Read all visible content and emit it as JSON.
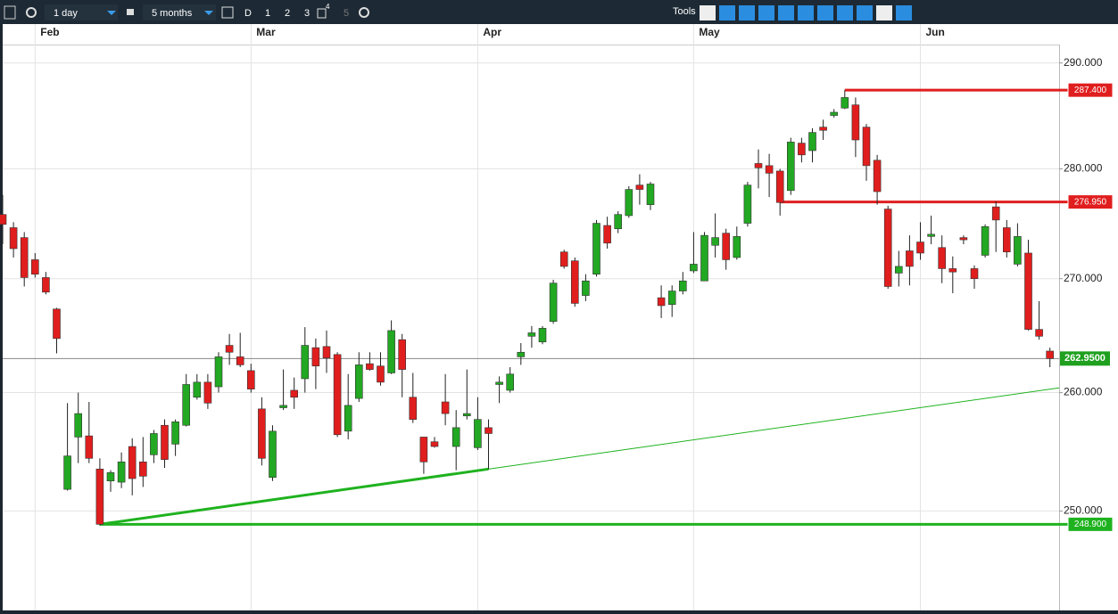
{
  "toolbar": {
    "interval": "1 day",
    "range": "5 months",
    "buttons": [
      "D",
      "1",
      "2",
      "3"
    ],
    "badge": "4",
    "disabled": "5",
    "tools": "Tools"
  },
  "chart_data": {
    "type": "candlestick",
    "log_scale": true,
    "grid": true,
    "up_color": "#22a822",
    "down_color": "#e01e1e",
    "categories": [
      null,
      null,
      null,
      "Feb",
      null,
      null,
      null,
      null,
      null,
      null,
      null,
      null,
      null,
      null,
      null,
      null,
      null,
      null,
      null,
      null,
      null,
      null,
      null,
      "Mar",
      null,
      null,
      null,
      null,
      null,
      null,
      null,
      null,
      null,
      null,
      null,
      null,
      null,
      null,
      null,
      null,
      null,
      null,
      null,
      null,
      "Apr",
      null,
      null,
      null,
      null,
      null,
      null,
      null,
      null,
      null,
      null,
      null,
      null,
      null,
      null,
      null,
      null,
      null,
      null,
      null,
      "May",
      null,
      null,
      null,
      null,
      null,
      null,
      null,
      null,
      null,
      null,
      null,
      null,
      null,
      null,
      null,
      null,
      null,
      null,
      null,
      null,
      "Jun",
      null,
      null,
      null,
      null,
      null,
      null,
      null,
      null,
      null,
      null,
      null,
      null
    ],
    "open": [
      275.8,
      274.6,
      273.7,
      271.7,
      270.1,
      267.3,
      251.8,
      256.2,
      256.3,
      253.5,
      252.5,
      252.4,
      255.4,
      254.1,
      254.7,
      257.2,
      255.6,
      257.2,
      259.6,
      260.9,
      260.5,
      264.1,
      263.1,
      261.9,
      258.6,
      252.8,
      258.7,
      260.2,
      261.2,
      263.9,
      264.0,
      263.3,
      256.7,
      259.5,
      262.5,
      262.3,
      261.7,
      264.6,
      259.6,
      256.2,
      255.8,
      259.2,
      255.4,
      258.0,
      255.3,
      257.0,
      260.7,
      260.2,
      263.1,
      264.9,
      264.4,
      266.2,
      272.4,
      271.6,
      268.5,
      270.4,
      274.8,
      274.5,
      275.7,
      278.5,
      276.7,
      268.3,
      267.7,
      268.9,
      270.7,
      269.8,
      273.0,
      274.1,
      271.9,
      275.0,
      280.5,
      280.3,
      279.8,
      278.0,
      282.4,
      281.7,
      283.9,
      285.0,
      285.7,
      286.0,
      283.9,
      280.8,
      276.3,
      270.5,
      272.5,
      273.3,
      273.8,
      272.8,
      270.9,
      273.7,
      270.9,
      272.1,
      276.5,
      274.6,
      271.3,
      272.3,
      265.5,
      263.6
    ],
    "high": [
      277.6,
      275.1,
      274.2,
      272.3,
      270.6,
      267.4,
      259.1,
      260.0,
      259.2,
      254.4,
      253.4,
      254.9,
      256.1,
      256.2,
      256.8,
      257.7,
      257.7,
      261.6,
      261.6,
      261.6,
      263.5,
      265.1,
      265.2,
      262.5,
      259.6,
      257.2,
      262.0,
      261.3,
      265.7,
      264.7,
      265.4,
      263.5,
      261.6,
      263.5,
      263.5,
      263.5,
      266.3,
      265.1,
      261.7,
      256.2,
      256.2,
      261.6,
      258.5,
      262.0,
      259.6,
      257.7,
      261.4,
      262.2,
      264.3,
      265.8,
      265.8,
      269.9,
      272.6,
      271.9,
      270.4,
      275.3,
      275.6,
      276.1,
      278.4,
      279.5,
      278.8,
      269.4,
      269.4,
      270.6,
      274.2,
      274.2,
      275.9,
      274.5,
      274.7,
      278.8,
      281.8,
      281.4,
      280.0,
      282.9,
      282.9,
      283.8,
      284.6,
      285.6,
      287.4,
      286.7,
      284.2,
      281.3,
      276.6,
      272.5,
      273.9,
      275.1,
      275.7,
      273.9,
      272.0,
      273.9,
      271.2,
      274.9,
      277.0,
      275.3,
      275.0,
      273.5,
      268.0,
      263.9
    ],
    "low": [
      273.1,
      271.9,
      269.3,
      270.1,
      268.6,
      263.4,
      251.7,
      254.0,
      254.0,
      248.8,
      251.6,
      251.9,
      251.3,
      252.0,
      254.0,
      253.6,
      254.6,
      257.1,
      259.4,
      258.6,
      260.0,
      262.4,
      262.2,
      260.0,
      253.8,
      252.5,
      258.5,
      258.6,
      260.0,
      260.3,
      261.7,
      256.2,
      256.0,
      259.2,
      261.9,
      260.6,
      261.6,
      259.6,
      257.4,
      253.1,
      255.3,
      257.2,
      253.4,
      257.7,
      255.1,
      253.5,
      259.1,
      260.0,
      262.4,
      263.9,
      264.2,
      266.0,
      270.9,
      267.5,
      268.0,
      270.2,
      272.7,
      274.1,
      275.5,
      276.7,
      276.2,
      266.5,
      266.6,
      268.6,
      270.5,
      269.8,
      271.9,
      270.8,
      271.7,
      274.7,
      278.2,
      277.4,
      275.7,
      277.6,
      280.6,
      280.6,
      282.7,
      284.8,
      285.6,
      281.1,
      278.9,
      276.7,
      269.1,
      269.3,
      269.4,
      271.7,
      273.1,
      269.6,
      268.7,
      273.1,
      269.1,
      271.9,
      272.4,
      271.9,
      271.1,
      265.4,
      264.6,
      262.2
    ],
    "close": [
      274.9,
      272.7,
      270.1,
      270.4,
      268.8,
      264.7,
      254.6,
      258.2,
      254.4,
      248.9,
      253.2,
      254.1,
      252.7,
      252.9,
      256.5,
      254.3,
      257.5,
      260.7,
      260.9,
      259.1,
      263.1,
      263.5,
      262.4,
      260.3,
      254.4,
      256.7,
      258.9,
      259.6,
      264.1,
      262.3,
      263.0,
      256.4,
      258.9,
      262.4,
      262.0,
      260.9,
      265.4,
      262.0,
      257.7,
      254.1,
      255.4,
      258.2,
      257.0,
      258.2,
      257.7,
      256.5,
      260.9,
      261.6,
      263.5,
      265.2,
      265.6,
      269.6,
      271.1,
      267.8,
      269.8,
      275.0,
      273.2,
      275.8,
      278.1,
      278.1,
      278.6,
      267.6,
      268.9,
      269.8,
      271.3,
      273.9,
      273.7,
      271.7,
      273.8,
      278.5,
      280.1,
      279.6,
      276.9,
      282.5,
      281.3,
      283.4,
      283.6,
      285.3,
      286.7,
      282.7,
      280.3,
      277.9,
      269.3,
      271.1,
      271.1,
      272.3,
      274.0,
      270.9,
      270.6,
      273.5,
      270.0,
      274.7,
      275.3,
      272.4,
      273.8,
      265.5,
      264.9,
      262.95
    ],
    "ylim": [
      241.9,
      291.6
    ],
    "yticks": [
      {
        "value": 250,
        "label": "250.000"
      },
      {
        "value": 260,
        "label": "260.000"
      },
      {
        "value": 270,
        "label": "270.000"
      },
      {
        "value": 280,
        "label": "280.000"
      },
      {
        "value": 290,
        "label": "290.000"
      }
    ],
    "last_price": {
      "value": 262.95,
      "label": "262.9500",
      "color": "#1fa01f"
    },
    "hlines": [
      {
        "value": 287.4,
        "label": "287.400",
        "color": "#e01e1e",
        "from": 78
      },
      {
        "value": 276.95,
        "label": "276.950",
        "color": "#e01e1e",
        "from": 72
      },
      {
        "value": 248.9,
        "label": "248.900",
        "color": "#1fb21f",
        "from": 9
      }
    ],
    "trendline": {
      "color": "#1fb21f",
      "points": [
        [
          9,
          248.9
        ],
        [
          45,
          253.5
        ]
      ]
    }
  }
}
